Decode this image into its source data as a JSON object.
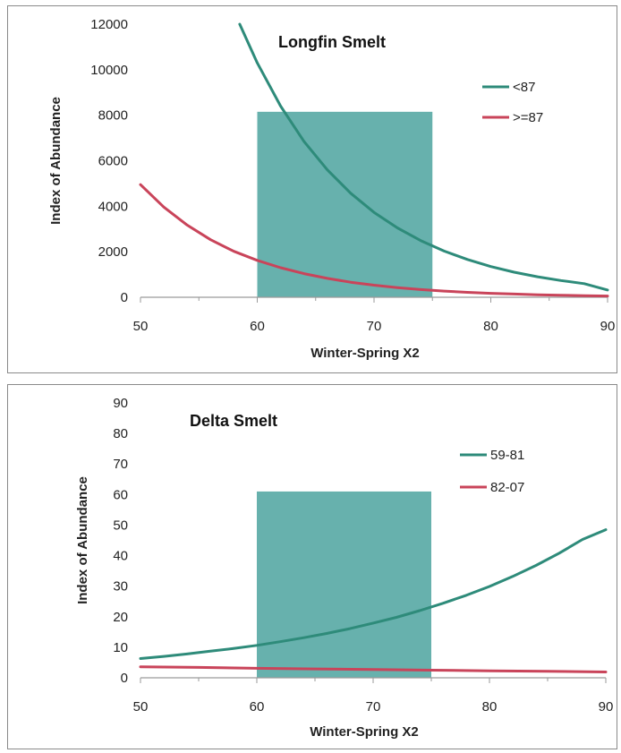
{
  "chart_data": [
    {
      "type": "line",
      "title": "Longfin Smelt",
      "xlabel": "Winter-Spring X2",
      "ylabel": "Index of Abundance",
      "xlim": [
        50,
        90
      ],
      "ylim": [
        0,
        12000
      ],
      "xticks": [
        50,
        60,
        70,
        80,
        90
      ],
      "yticks": [
        0,
        2000,
        4000,
        6000,
        8000,
        10000,
        12000
      ],
      "grid": false,
      "legend_position": "top-right",
      "series": [
        {
          "name": "<87",
          "color": "#2e8b7a",
          "x": [
            58.5,
            60,
            62,
            64,
            66,
            68,
            70,
            72,
            74,
            76,
            78,
            80,
            82,
            84,
            86,
            88,
            90
          ],
          "y": [
            12000,
            10300,
            8400,
            6850,
            5600,
            4570,
            3730,
            3050,
            2490,
            2030,
            1660,
            1350,
            1100,
            900,
            735,
            600,
            320
          ]
        },
        {
          "name": ">=87",
          "color": "#c9445a",
          "x": [
            50,
            52,
            54,
            56,
            58,
            60,
            62,
            64,
            66,
            68,
            70,
            72,
            74,
            76,
            78,
            80,
            82,
            84,
            86,
            88,
            90
          ],
          "y": [
            4950,
            3960,
            3170,
            2530,
            2020,
            1620,
            1300,
            1040,
            830,
            660,
            530,
            425,
            340,
            270,
            215,
            175,
            140,
            110,
            90,
            70,
            55
          ]
        }
      ],
      "shaded_region": {
        "x": [
          60,
          75
        ],
        "y": [
          0,
          8150
        ],
        "color": "#5aaaa6"
      }
    },
    {
      "type": "line",
      "title": "Delta Smelt",
      "xlabel": "Winter-Spring X2",
      "ylabel": "Index of Abundance",
      "xlim": [
        50,
        90
      ],
      "ylim": [
        0,
        90
      ],
      "xticks": [
        50,
        60,
        70,
        80,
        90
      ],
      "yticks": [
        0,
        10,
        20,
        30,
        40,
        50,
        60,
        70,
        80,
        90
      ],
      "grid": false,
      "legend_position": "top-right",
      "series": [
        {
          "name": "59-81",
          "color": "#2e8b7a",
          "x": [
            50,
            52,
            54,
            56,
            58,
            60,
            62,
            64,
            66,
            68,
            70,
            72,
            74,
            76,
            78,
            80,
            82,
            84,
            86,
            88,
            90
          ],
          "y": [
            6.3,
            7.0,
            7.8,
            8.7,
            9.6,
            10.6,
            11.8,
            13.1,
            14.5,
            16.1,
            17.9,
            19.8,
            22.0,
            24.4,
            27.0,
            29.9,
            33.2,
            36.8,
            40.8,
            45.3,
            48.5
          ]
        },
        {
          "name": "82-07",
          "color": "#c9445a",
          "x": [
            50,
            55,
            60,
            65,
            70,
            75,
            80,
            85,
            90
          ],
          "y": [
            3.6,
            3.4,
            3.1,
            2.9,
            2.7,
            2.5,
            2.3,
            2.1,
            1.9
          ]
        }
      ],
      "shaded_region": {
        "x": [
          60,
          75
        ],
        "y": [
          0,
          61
        ],
        "color": "#5aaaa6"
      }
    }
  ]
}
